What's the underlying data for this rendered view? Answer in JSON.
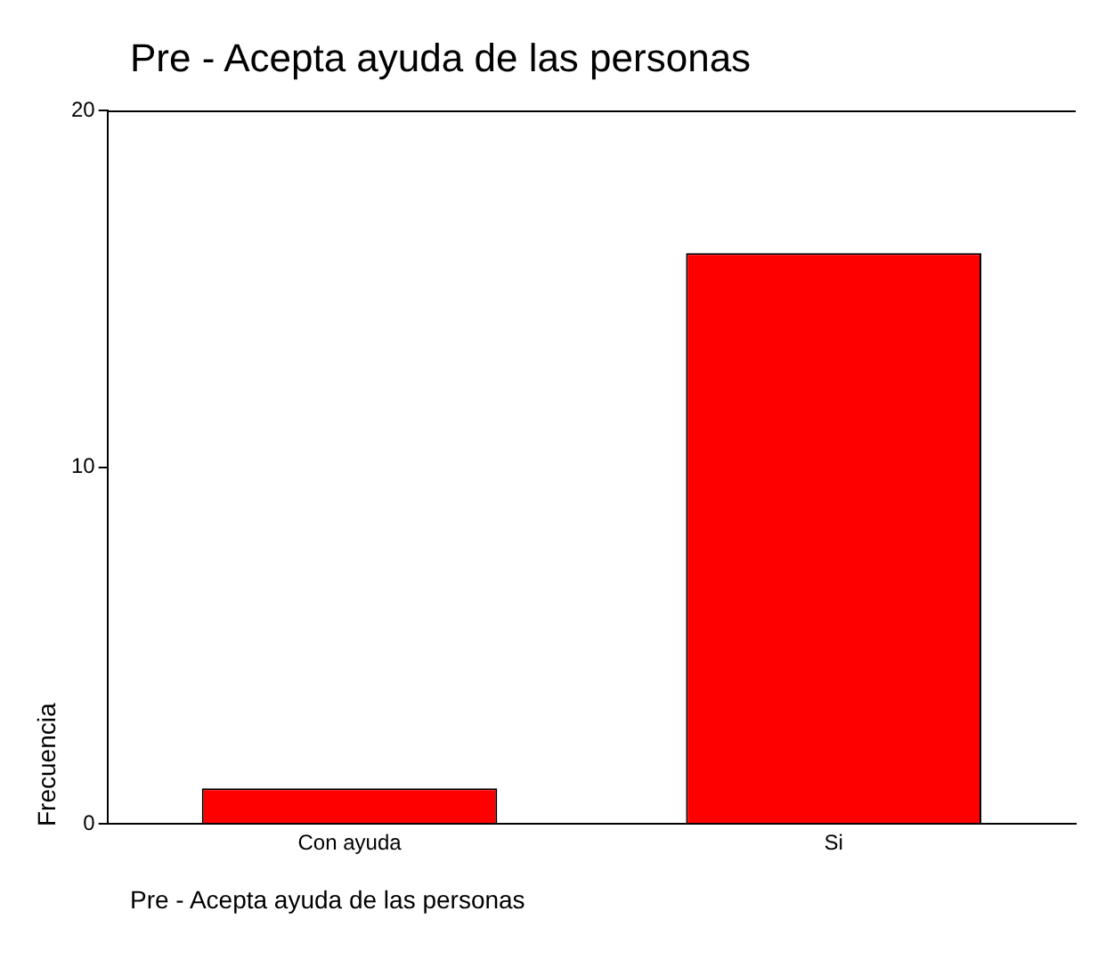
{
  "chart_data": {
    "type": "bar",
    "title": "Pre - Acepta ayuda de las personas",
    "xlabel": "Pre - Acepta ayuda de las personas",
    "ylabel": "Frecuencia",
    "categories": [
      "Con ayuda",
      "Si"
    ],
    "values": [
      1,
      16
    ],
    "color": "#ff0000",
    "ylim": [
      0,
      20
    ],
    "yticks": [
      0,
      10,
      20
    ],
    "grid": false,
    "legend": false
  }
}
